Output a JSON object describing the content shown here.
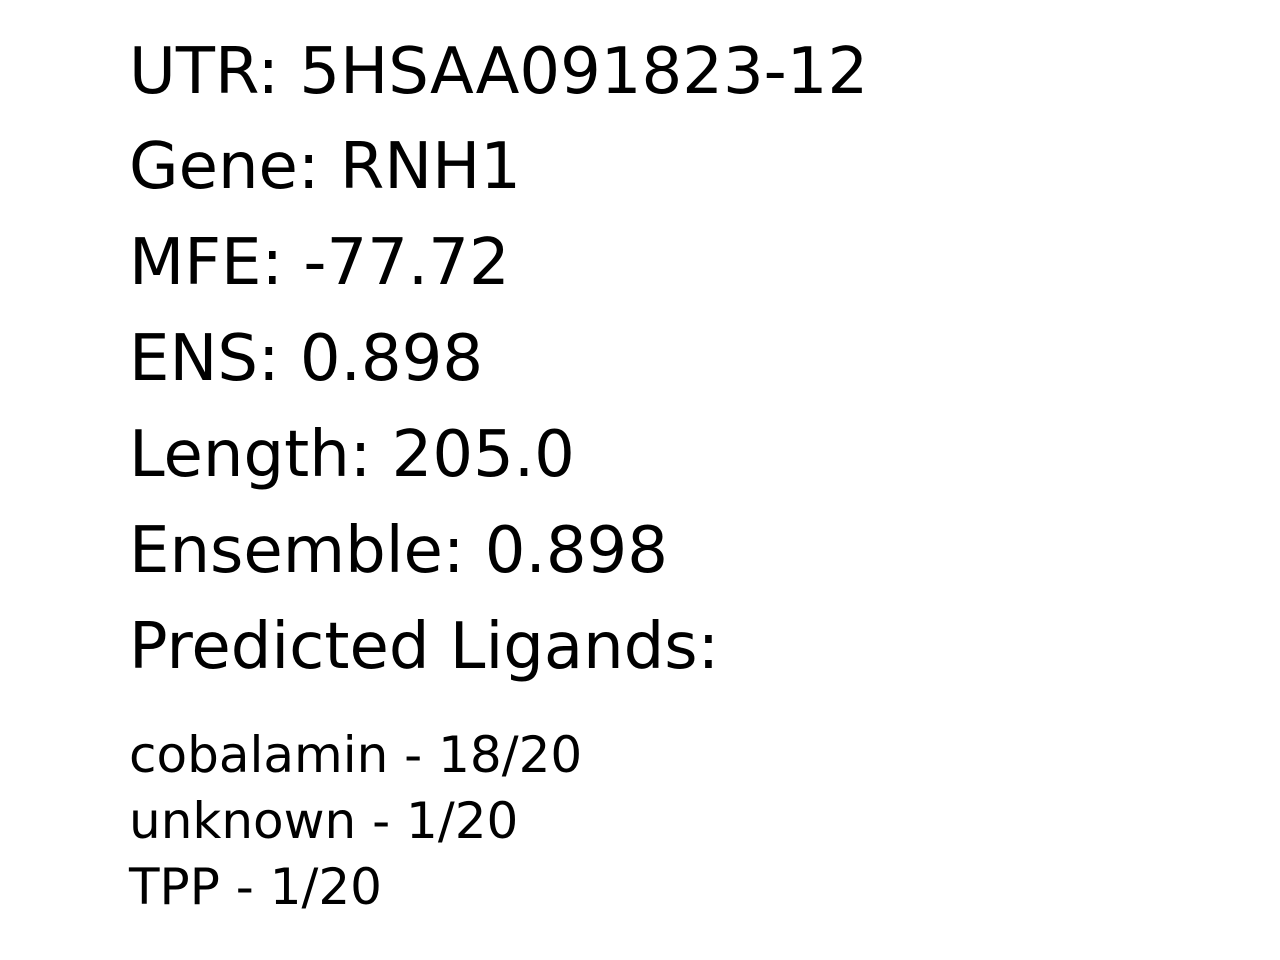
{
  "utr": {
    "label": "UTR",
    "value": "5HSAA091823-12"
  },
  "gene": {
    "label": "Gene",
    "value": "RNH1"
  },
  "mfe": {
    "label": "MFE",
    "value": "-77.72"
  },
  "ens": {
    "label": "ENS",
    "value": "0.898"
  },
  "length": {
    "label": "Length",
    "value": "205.0"
  },
  "ensemble": {
    "label": "Ensemble",
    "value": "0.898"
  },
  "ligands_heading": "Predicted Ligands:",
  "ligands": [
    {
      "name": "cobalamin",
      "score": "18/20"
    },
    {
      "name": "unknown",
      "score": "1/20"
    },
    {
      "name": "TPP",
      "score": "1/20"
    }
  ]
}
